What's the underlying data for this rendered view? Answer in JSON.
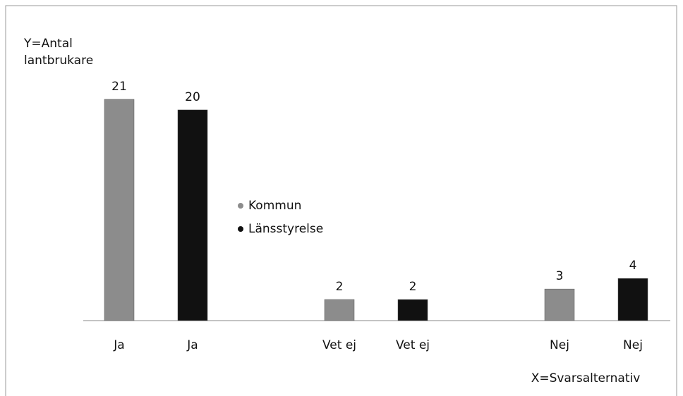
{
  "chart_data": {
    "type": "bar",
    "y_label": "Y=Antal lantbrukare",
    "x_label": "X=Svarsalternativ",
    "categories": [
      "Ja",
      "Vet ej",
      "Nej"
    ],
    "series": [
      {
        "name": "Kommun",
        "color": "#8c8c8c",
        "values": [
          21,
          2,
          3
        ]
      },
      {
        "name": "Länsstyrelse",
        "color": "#111111",
        "values": [
          20,
          2,
          4
        ]
      }
    ],
    "ylim": [
      0,
      21
    ],
    "legend": "center"
  }
}
